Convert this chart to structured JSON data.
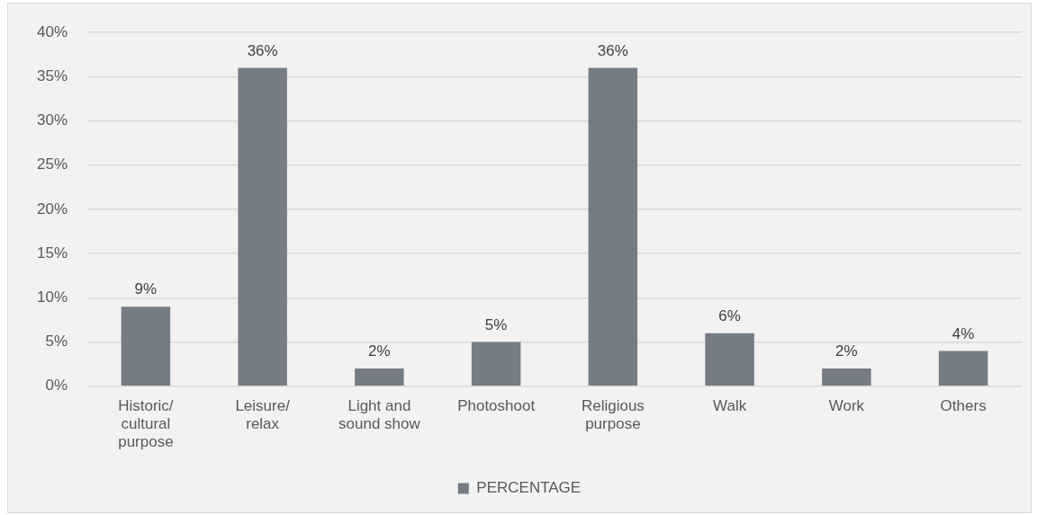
{
  "chart_data": {
    "type": "bar",
    "categories": [
      "Historic/ cultural purpose",
      "Leisure/ relax",
      "Light and sound show",
      "Photoshoot",
      "Religious purpose",
      "Walk",
      "Work",
      "Others"
    ],
    "series": [
      {
        "name": "PERCENTAGE",
        "color": "#757c84",
        "values": [
          9,
          36,
          2,
          5,
          36,
          6,
          2,
          4
        ],
        "value_labels": [
          "9%",
          "36%",
          "2%",
          "5%",
          "36%",
          "6%",
          "2%",
          "4%"
        ]
      }
    ],
    "ylim": [
      0,
      40
    ],
    "yticks": [
      {
        "value": 0,
        "label": "0%"
      },
      {
        "value": 5,
        "label": "5%"
      },
      {
        "value": 10,
        "label": "10%"
      },
      {
        "value": 15,
        "label": "15%"
      },
      {
        "value": 20,
        "label": "20%"
      },
      {
        "value": 25,
        "label": "25%"
      },
      {
        "value": 30,
        "label": "30%"
      },
      {
        "value": 35,
        "label": "35%"
      },
      {
        "value": 40,
        "label": "40%"
      }
    ],
    "grid": "y",
    "legend": "bottom"
  }
}
